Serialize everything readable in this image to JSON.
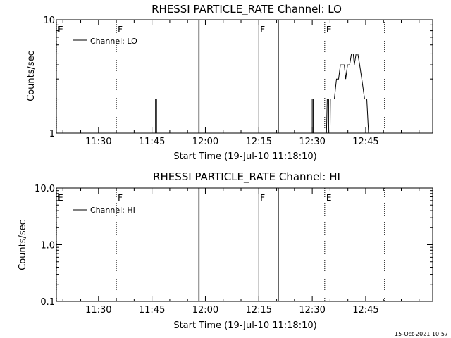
{
  "footer_timestamp": "15-Oct-2021 10:57",
  "chart_data": [
    {
      "type": "line",
      "title": "RHESSI PARTICLE_RATE Channel: LO",
      "xlabel": "Start Time (19-Jul-10 11:18:10)",
      "ylabel": "Counts/sec",
      "yscale": "log",
      "ylim": [
        1,
        10
      ],
      "ytick_values": [
        1,
        10
      ],
      "ytick_labels": [
        "1",
        "10"
      ],
      "xlim_minutes": [
        678.17,
        783.8
      ],
      "xtick_labels": [
        "11:30",
        "11:45",
        "12:00",
        "12:15",
        "12:30",
        "12:45"
      ],
      "xtick_minutes": [
        690,
        705,
        720,
        735,
        750,
        765
      ],
      "legend": "Channel: LO",
      "legend_position": "top-left",
      "markers": [
        {
          "minutes": 678.2,
          "label": "E",
          "style": "dotted"
        },
        {
          "minutes": 695.0,
          "label": "F",
          "style": "dotted"
        },
        {
          "minutes": 735.0,
          "label": "F",
          "style": "solid"
        },
        {
          "minutes": 740.5,
          "style": "solid"
        },
        {
          "minutes": 753.5,
          "label": "E",
          "style": "dotted"
        },
        {
          "minutes": 770.3,
          "style": "dotted"
        }
      ],
      "gap_lines_minutes": [
        718.2
      ],
      "series": [
        {
          "segments": [
            [
              [
                706.0,
                1
              ],
              [
                706.0,
                2
              ],
              [
                706.3,
                2
              ],
              [
                706.3,
                1
              ]
            ],
            [
              [
                750.0,
                1
              ],
              [
                750.0,
                2
              ],
              [
                750.3,
                2
              ],
              [
                750.3,
                1
              ]
            ],
            [
              [
                754.0,
                1
              ],
              [
                754.2,
                2
              ],
              [
                754.6,
                2
              ],
              [
                754.6,
                1
              ],
              [
                755.0,
                1
              ],
              [
                755.1,
                2
              ],
              [
                755.9,
                2
              ],
              [
                756.2,
                2
              ],
              [
                756.8,
                3
              ],
              [
                757.4,
                3
              ],
              [
                757.9,
                4
              ],
              [
                758.5,
                4
              ],
              [
                759.0,
                4
              ],
              [
                759.4,
                3
              ],
              [
                759.9,
                4
              ],
              [
                760.5,
                4
              ],
              [
                761.0,
                5
              ],
              [
                761.5,
                5
              ],
              [
                761.8,
                4
              ],
              [
                762.3,
                5
              ],
              [
                762.8,
                5
              ],
              [
                763.3,
                4
              ],
              [
                763.9,
                3
              ],
              [
                764.7,
                2
              ],
              [
                765.3,
                2
              ],
              [
                765.8,
                1
              ]
            ]
          ]
        }
      ]
    },
    {
      "type": "line",
      "title": "RHESSI PARTICLE_RATE Channel: HI",
      "xlabel": "Start Time (19-Jul-10 11:18:10)",
      "ylabel": "Counts/sec",
      "yscale": "log",
      "ylim": [
        0.1,
        10
      ],
      "ytick_values": [
        0.1,
        1,
        10
      ],
      "ytick_labels": [
        "0.1",
        "1.0",
        "10.0"
      ],
      "xlim_minutes": [
        678.17,
        783.8
      ],
      "xtick_labels": [
        "11:30",
        "11:45",
        "12:00",
        "12:15",
        "12:30",
        "12:45"
      ],
      "xtick_minutes": [
        690,
        705,
        720,
        735,
        750,
        765
      ],
      "legend": "Channel: HI",
      "legend_position": "top-left",
      "markers": [
        {
          "minutes": 678.2,
          "label": "E",
          "style": "dotted"
        },
        {
          "minutes": 695.0,
          "label": "F",
          "style": "dotted"
        },
        {
          "minutes": 735.0,
          "label": "F",
          "style": "solid"
        },
        {
          "minutes": 740.5,
          "style": "solid"
        },
        {
          "minutes": 753.5,
          "label": "E",
          "style": "dotted"
        },
        {
          "minutes": 770.3,
          "style": "dotted"
        }
      ],
      "gap_lines_minutes": [
        718.2
      ],
      "series": []
    }
  ]
}
